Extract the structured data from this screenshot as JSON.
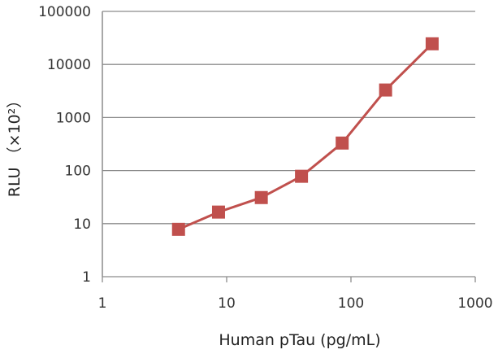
{
  "chart_data": {
    "type": "line",
    "title": "",
    "xlabel": "Human pTau (pg/mL)",
    "ylabel": "RLU （×10²）",
    "x_scale": "log",
    "y_scale": "log",
    "xlim": [
      1,
      1000
    ],
    "ylim": [
      1,
      100000
    ],
    "x_ticks": [
      1,
      10,
      100,
      1000
    ],
    "x_tick_labels": [
      "1",
      "10",
      "100",
      "1000"
    ],
    "y_ticks": [
      1,
      10,
      100,
      1000,
      10000,
      100000
    ],
    "y_tick_labels": [
      "1",
      "10",
      "100",
      "1000",
      "10000",
      "100000"
    ],
    "grid": "horizontal",
    "legend": "none",
    "series": [
      {
        "x": [
          4.1,
          8.6,
          19,
          40,
          85,
          190,
          450
        ],
        "y": [
          7.8,
          16.5,
          31,
          78,
          330,
          3300,
          24500
        ],
        "color": "#c0504d",
        "marker": "square"
      }
    ]
  }
}
